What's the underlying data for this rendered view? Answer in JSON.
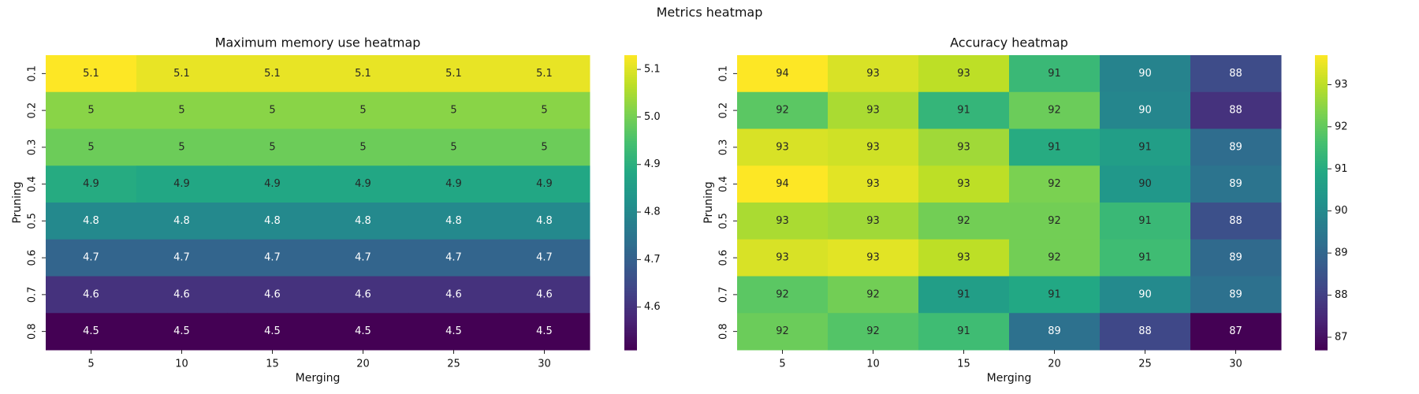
{
  "figure": {
    "title": "Metrics heatmap"
  },
  "chart_data": [
    {
      "type": "heatmap",
      "title": "Maximum memory use heatmap",
      "xlabel": "Merging",
      "ylabel": "Pruning",
      "x_categories": [
        "5",
        "10",
        "15",
        "20",
        "25",
        "30"
      ],
      "y_categories": [
        "0.1",
        "0.2",
        "0.3",
        "0.4",
        "0.5",
        "0.6",
        "0.7",
        "0.8"
      ],
      "values": [
        [
          5.13,
          5.11,
          5.11,
          5.11,
          5.11,
          5.11
        ],
        [
          5.02,
          5.02,
          5.02,
          5.02,
          5.02,
          5.02
        ],
        [
          4.99,
          4.99,
          4.99,
          4.99,
          4.99,
          4.99
        ],
        [
          4.89,
          4.88,
          4.88,
          4.88,
          4.88,
          4.88
        ],
        [
          4.8,
          4.8,
          4.8,
          4.8,
          4.8,
          4.8
        ],
        [
          4.71,
          4.71,
          4.71,
          4.71,
          4.71,
          4.71
        ],
        [
          4.6,
          4.6,
          4.6,
          4.6,
          4.6,
          4.6
        ],
        [
          4.51,
          4.51,
          4.51,
          4.51,
          4.51,
          4.51
        ]
      ],
      "labels": [
        [
          "5.1",
          "5.1",
          "5.1",
          "5.1",
          "5.1",
          "5.1"
        ],
        [
          "5",
          "5",
          "5",
          "5",
          "5",
          "5"
        ],
        [
          "5",
          "5",
          "5",
          "5",
          "5",
          "5"
        ],
        [
          "4.9",
          "4.9",
          "4.9",
          "4.9",
          "4.9",
          "4.9"
        ],
        [
          "4.8",
          "4.8",
          "4.8",
          "4.8",
          "4.8",
          "4.8"
        ],
        [
          "4.7",
          "4.7",
          "4.7",
          "4.7",
          "4.7",
          "4.7"
        ],
        [
          "4.6",
          "4.6",
          "4.6",
          "4.6",
          "4.6",
          "4.6"
        ],
        [
          "4.5",
          "4.5",
          "4.5",
          "4.5",
          "4.5",
          "4.5"
        ]
      ],
      "colorbar": {
        "min": 4.51,
        "max": 5.13,
        "ticks": [
          4.6,
          4.7,
          4.8,
          4.9,
          5.0,
          5.1
        ],
        "tick_labels": [
          "4.6",
          "4.7",
          "4.8",
          "4.9",
          "5.0",
          "5.1"
        ]
      },
      "colormap": "viridis"
    },
    {
      "type": "heatmap",
      "title": "Accuracy heatmap",
      "xlabel": "Merging",
      "ylabel": "Pruning",
      "x_categories": [
        "5",
        "10",
        "15",
        "20",
        "25",
        "30"
      ],
      "y_categories": [
        "0.1",
        "0.2",
        "0.3",
        "0.4",
        "0.5",
        "0.6",
        "0.7",
        "0.8"
      ],
      "values": [
        [
          93.7,
          93.3,
          93.0,
          91.4,
          89.8,
          88.3
        ],
        [
          91.9,
          92.8,
          91.3,
          92.1,
          89.9,
          87.7
        ],
        [
          93.3,
          93.2,
          92.7,
          91.0,
          90.6,
          89.2
        ],
        [
          93.7,
          93.4,
          93.0,
          92.3,
          90.4,
          89.4
        ],
        [
          92.8,
          92.7,
          92.2,
          92.2,
          91.4,
          88.4
        ],
        [
          93.3,
          93.4,
          93.0,
          92.2,
          91.5,
          89.1
        ],
        [
          91.9,
          92.2,
          90.6,
          90.9,
          90.0,
          89.3
        ],
        [
          92.1,
          91.8,
          91.5,
          89.3,
          88.2,
          86.7
        ]
      ],
      "labels": [
        [
          "94",
          "93",
          "93",
          "91",
          "90",
          "88"
        ],
        [
          "92",
          "93",
          "91",
          "92",
          "90",
          "88"
        ],
        [
          "93",
          "93",
          "93",
          "91",
          "91",
          "89"
        ],
        [
          "94",
          "93",
          "93",
          "92",
          "90",
          "89"
        ],
        [
          "93",
          "93",
          "92",
          "92",
          "91",
          "88"
        ],
        [
          "93",
          "93",
          "93",
          "92",
          "91",
          "89"
        ],
        [
          "92",
          "92",
          "91",
          "91",
          "90",
          "89"
        ],
        [
          "92",
          "92",
          "91",
          "89",
          "88",
          "87"
        ]
      ],
      "colorbar": {
        "min": 86.7,
        "max": 93.7,
        "ticks": [
          87,
          88,
          89,
          90,
          91,
          92,
          93
        ],
        "tick_labels": [
          "87",
          "88",
          "89",
          "90",
          "91",
          "92",
          "93"
        ]
      },
      "colormap": "viridis"
    }
  ]
}
